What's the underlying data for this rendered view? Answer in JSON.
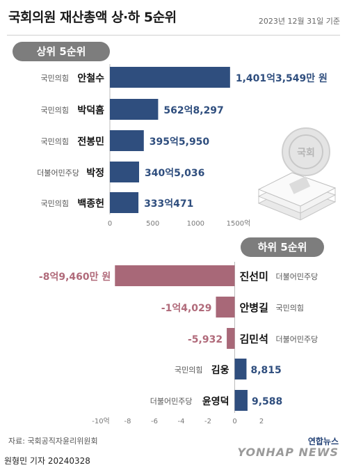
{
  "header": {
    "title": "국회의원 재산총액 상·하 5순위",
    "date": "2023년 12월 31일 기준"
  },
  "sections": {
    "top_label": "상위 5순위",
    "bottom_label": "하위 5순위"
  },
  "footer": {
    "source": "자료: 국회공직자윤리위원회",
    "byline": "원형민 기자  20240328",
    "logo_korean": "연합뉴스",
    "logo_english": "YONHAP NEWS"
  },
  "illustration": {
    "seal_text": "국회"
  },
  "colors": {
    "positive": "#2f4e7e",
    "negative": "#a86878",
    "negative_text": "#b06a7a",
    "pill": "#7d7d7d"
  },
  "chart_data": [
    {
      "type": "bar",
      "orientation": "horizontal",
      "title": "상위 5순위",
      "xlim": [
        0,
        1500
      ],
      "xticks": [
        "0",
        "500",
        "1000",
        "1500억"
      ],
      "categories": [
        "안철수",
        "박덕흠",
        "전봉민",
        "박정",
        "백종헌"
      ],
      "parties": [
        "국민의힘",
        "국민의힘",
        "국민의힘",
        "더불어민주당",
        "국민의힘"
      ],
      "values": [
        1401.3549,
        562.8297,
        395.595,
        340.5036,
        333.0471
      ],
      "value_labels": [
        "1,401억3,549만 원",
        "562억8,297",
        "395억5,950",
        "340억5,036",
        "333억471"
      ]
    },
    {
      "type": "bar",
      "orientation": "horizontal",
      "title": "하위 5순위",
      "xlim": [
        -10,
        2
      ],
      "xticks": [
        "-10억",
        "-8",
        "-6",
        "-4",
        "-2",
        "0",
        "2"
      ],
      "categories": [
        "진선미",
        "안병길",
        "김민석",
        "김웅",
        "윤영덕"
      ],
      "parties": [
        "더불어민주당",
        "국민의힘",
        "더불어민주당",
        "국민의힘",
        "더불어민주당"
      ],
      "values": [
        -8.946,
        -1.4029,
        -0.5932,
        0.8815,
        0.9588
      ],
      "value_labels": [
        "-8억9,460만 원",
        "-1억4,029",
        "-5,932",
        "8,815",
        "9,588"
      ]
    }
  ]
}
